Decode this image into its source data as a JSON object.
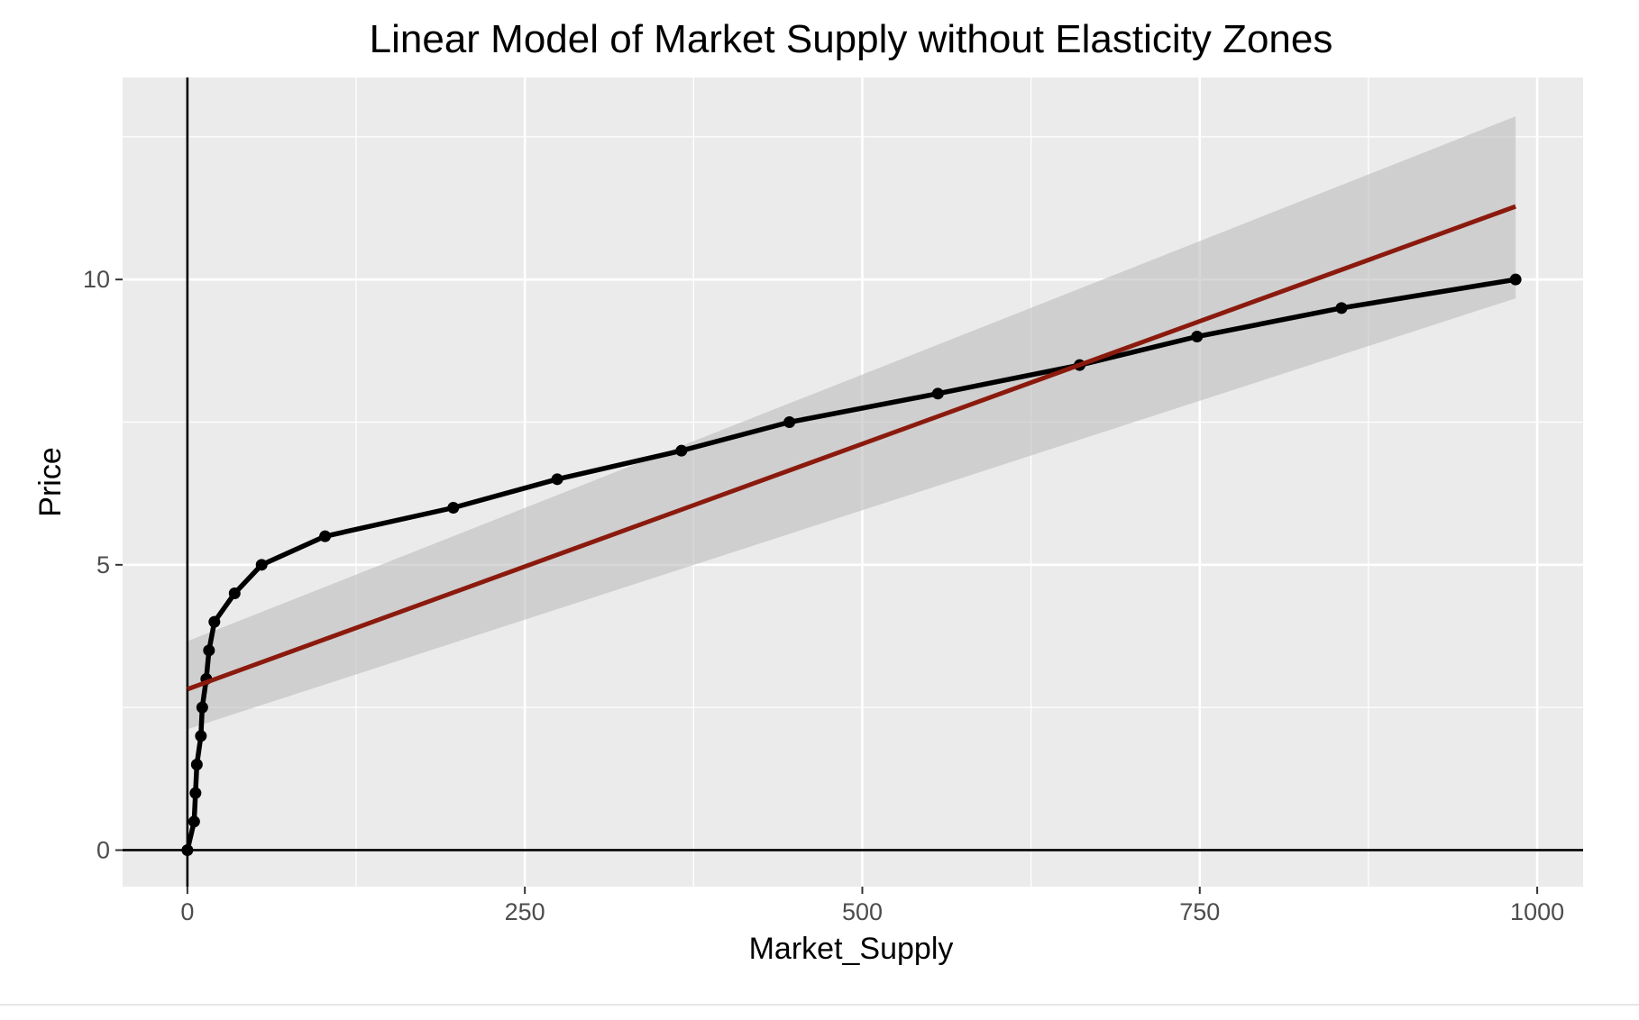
{
  "chart_data": {
    "type": "line",
    "title": "Linear Model of Market Supply without Elasticity Zones",
    "xlabel": "Market_Supply",
    "ylabel": "Price",
    "xlim": [
      -48,
      1034
    ],
    "ylim": [
      -0.64,
      13.54
    ],
    "x_ticks": [
      0,
      250,
      500,
      750,
      1000
    ],
    "x_tick_labels": [
      "0",
      "250",
      "500",
      "750",
      "1000"
    ],
    "y_ticks": [
      0,
      5,
      10
    ],
    "y_tick_labels": [
      "0",
      "5",
      "10"
    ],
    "grid": true,
    "legend": "none",
    "series": [
      {
        "x": [
          0,
          5,
          6,
          7,
          10,
          11,
          14,
          16,
          20,
          35,
          55,
          102,
          197,
          274,
          366,
          446,
          556,
          661,
          748,
          855,
          984
        ],
        "y": [
          0,
          0.5,
          1.0,
          1.5,
          2.0,
          2.5,
          3.0,
          3.5,
          4.0,
          4.5,
          5.0,
          5.5,
          6.0,
          6.5,
          7.0,
          7.5,
          8.0,
          8.5,
          9.0,
          9.5,
          10.0
        ],
        "color": "#000000"
      }
    ],
    "fit": {
      "x": [
        0,
        984
      ],
      "y": [
        2.82,
        11.28
      ],
      "ci_lower": [
        2.12,
        9.67
      ],
      "ci_upper": [
        3.66,
        12.86
      ],
      "color": "#8b1a0e",
      "band_color": "#bdbdbd"
    },
    "reference_lines": {
      "x": 0,
      "y": 0
    }
  }
}
